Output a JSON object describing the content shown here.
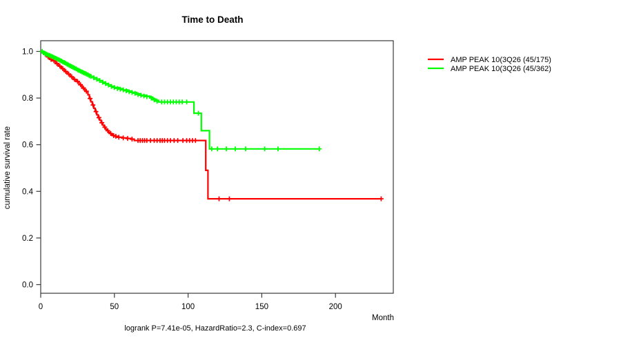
{
  "chart_data": {
    "type": "line",
    "subtype": "kaplan-meier-step",
    "title": "Time to Death",
    "xlabel": "Month",
    "ylabel": "cumulative survival rate",
    "annotation": "logrank P=7.41e-05, HazardRatio=2.3, C-index=0.697",
    "xlim": [
      0,
      239
    ],
    "ylim": [
      0,
      1.04
    ],
    "xticks": [
      0,
      50,
      100,
      150,
      200
    ],
    "yticks": [
      "0.0",
      "0.2",
      "0.4",
      "0.6",
      "0.8",
      "1.0"
    ],
    "grid": false,
    "legend_position": "right-outside",
    "series": [
      {
        "name": "AMP PEAK 10(3Q26 (45/175)",
        "color": "#ff0000",
        "steps": [
          [
            0,
            1.0
          ],
          [
            2,
            0.989
          ],
          [
            4,
            0.977
          ],
          [
            6,
            0.966
          ],
          [
            8,
            0.96
          ],
          [
            10,
            0.948
          ],
          [
            12,
            0.937
          ],
          [
            14,
            0.926
          ],
          [
            16,
            0.914
          ],
          [
            18,
            0.903
          ],
          [
            20,
            0.891
          ],
          [
            22,
            0.88
          ],
          [
            24,
            0.871
          ],
          [
            26,
            0.857
          ],
          [
            28,
            0.843
          ],
          [
            30,
            0.829
          ],
          [
            32,
            0.814
          ],
          [
            33,
            0.798
          ],
          [
            34,
            0.784
          ],
          [
            35,
            0.77
          ],
          [
            36,
            0.756
          ],
          [
            37,
            0.742
          ],
          [
            38,
            0.728
          ],
          [
            39,
            0.716
          ],
          [
            40,
            0.705
          ],
          [
            41,
            0.694
          ],
          [
            42,
            0.684
          ],
          [
            43,
            0.675
          ],
          [
            44,
            0.667
          ],
          [
            45,
            0.66
          ],
          [
            46,
            0.653
          ],
          [
            47,
            0.648
          ],
          [
            48,
            0.643
          ],
          [
            49,
            0.639
          ],
          [
            50,
            0.636
          ],
          [
            52,
            0.632
          ],
          [
            55,
            0.629
          ],
          [
            58,
            0.627
          ],
          [
            61,
            0.624
          ],
          [
            63.5,
            0.618
          ],
          [
            112,
            0.49
          ],
          [
            113.5,
            0.368
          ],
          [
            231,
            0.368
          ]
        ],
        "censors": [
          [
            3,
            0.989
          ],
          [
            5,
            0.977
          ],
          [
            7,
            0.966
          ],
          [
            9,
            0.96
          ],
          [
            11,
            0.948
          ],
          [
            13,
            0.937
          ],
          [
            15,
            0.926
          ],
          [
            17,
            0.914
          ],
          [
            19,
            0.903
          ],
          [
            21,
            0.891
          ],
          [
            23,
            0.88
          ],
          [
            25,
            0.871
          ],
          [
            27,
            0.857
          ],
          [
            29,
            0.843
          ],
          [
            31,
            0.829
          ],
          [
            33.5,
            0.798
          ],
          [
            35.5,
            0.77
          ],
          [
            37.5,
            0.742
          ],
          [
            39.5,
            0.716
          ],
          [
            41.5,
            0.694
          ],
          [
            43.5,
            0.675
          ],
          [
            45.5,
            0.66
          ],
          [
            47.5,
            0.648
          ],
          [
            49.5,
            0.639
          ],
          [
            51,
            0.636
          ],
          [
            53,
            0.632
          ],
          [
            56,
            0.629
          ],
          [
            59,
            0.627
          ],
          [
            62,
            0.624
          ],
          [
            66,
            0.618
          ],
          [
            67.5,
            0.618
          ],
          [
            69,
            0.618
          ],
          [
            70.5,
            0.618
          ],
          [
            72,
            0.618
          ],
          [
            74.5,
            0.618
          ],
          [
            77,
            0.618
          ],
          [
            79,
            0.618
          ],
          [
            81,
            0.618
          ],
          [
            82.5,
            0.618
          ],
          [
            84,
            0.618
          ],
          [
            86,
            0.618
          ],
          [
            88,
            0.618
          ],
          [
            90.5,
            0.618
          ],
          [
            93,
            0.618
          ],
          [
            96.5,
            0.618
          ],
          [
            99,
            0.618
          ],
          [
            101,
            0.618
          ],
          [
            103,
            0.618
          ],
          [
            105,
            0.618
          ],
          [
            121,
            0.368
          ],
          [
            128,
            0.368
          ],
          [
            231,
            0.368
          ]
        ]
      },
      {
        "name": "AMP PEAK 10(3Q26 (45/362)",
        "color": "#00ff00",
        "steps": [
          [
            0,
            1.0
          ],
          [
            2,
            0.994
          ],
          [
            4,
            0.988
          ],
          [
            6,
            0.983
          ],
          [
            8,
            0.977
          ],
          [
            10,
            0.971
          ],
          [
            12,
            0.965
          ],
          [
            14,
            0.959
          ],
          [
            16,
            0.952
          ],
          [
            18,
            0.945
          ],
          [
            20,
            0.938
          ],
          [
            22,
            0.931
          ],
          [
            24,
            0.925
          ],
          [
            26,
            0.918
          ],
          [
            28,
            0.912
          ],
          [
            30,
            0.906
          ],
          [
            32,
            0.9
          ],
          [
            34,
            0.893
          ],
          [
            36,
            0.887
          ],
          [
            38,
            0.881
          ],
          [
            40,
            0.875
          ],
          [
            42,
            0.868
          ],
          [
            44,
            0.862
          ],
          [
            46,
            0.856
          ],
          [
            48,
            0.85
          ],
          [
            50,
            0.845
          ],
          [
            53,
            0.84
          ],
          [
            56,
            0.835
          ],
          [
            59,
            0.83
          ],
          [
            62,
            0.824
          ],
          [
            65,
            0.818
          ],
          [
            68,
            0.812
          ],
          [
            71,
            0.808
          ],
          [
            74,
            0.804
          ],
          [
            76,
            0.796
          ],
          [
            78,
            0.79
          ],
          [
            80,
            0.783
          ],
          [
            104,
            0.735
          ],
          [
            109,
            0.66
          ],
          [
            114.5,
            0.582
          ],
          [
            189,
            0.582
          ]
        ],
        "censors": [
          [
            1,
            1.0
          ],
          [
            2,
            0.994
          ],
          [
            3,
            0.991
          ],
          [
            4,
            0.988
          ],
          [
            5,
            0.985
          ],
          [
            6,
            0.983
          ],
          [
            7,
            0.98
          ],
          [
            8,
            0.977
          ],
          [
            9,
            0.974
          ],
          [
            10,
            0.971
          ],
          [
            11,
            0.968
          ],
          [
            12,
            0.965
          ],
          [
            13,
            0.962
          ],
          [
            14,
            0.959
          ],
          [
            15,
            0.955
          ],
          [
            16,
            0.952
          ],
          [
            17,
            0.949
          ],
          [
            18,
            0.945
          ],
          [
            19,
            0.942
          ],
          [
            20,
            0.938
          ],
          [
            21,
            0.935
          ],
          [
            22,
            0.931
          ],
          [
            23,
            0.928
          ],
          [
            24,
            0.925
          ],
          [
            25,
            0.921
          ],
          [
            26,
            0.918
          ],
          [
            27,
            0.915
          ],
          [
            28,
            0.912
          ],
          [
            29,
            0.909
          ],
          [
            30,
            0.906
          ],
          [
            31,
            0.903
          ],
          [
            32,
            0.9
          ],
          [
            33,
            0.896
          ],
          [
            34,
            0.893
          ],
          [
            36,
            0.887
          ],
          [
            38,
            0.881
          ],
          [
            40,
            0.875
          ],
          [
            42,
            0.868
          ],
          [
            44,
            0.862
          ],
          [
            46,
            0.856
          ],
          [
            48,
            0.85
          ],
          [
            50,
            0.845
          ],
          [
            52,
            0.841
          ],
          [
            54,
            0.838
          ],
          [
            56,
            0.835
          ],
          [
            58,
            0.831
          ],
          [
            60,
            0.827
          ],
          [
            62,
            0.824
          ],
          [
            64,
            0.82
          ],
          [
            66,
            0.815
          ],
          [
            68,
            0.812
          ],
          [
            70,
            0.809
          ],
          [
            72,
            0.806
          ],
          [
            75,
            0.8
          ],
          [
            77,
            0.792
          ],
          [
            79,
            0.786
          ],
          [
            82,
            0.783
          ],
          [
            84,
            0.783
          ],
          [
            86,
            0.783
          ],
          [
            88,
            0.783
          ],
          [
            90,
            0.783
          ],
          [
            92,
            0.783
          ],
          [
            94,
            0.783
          ],
          [
            96,
            0.783
          ],
          [
            99,
            0.783
          ],
          [
            107,
            0.735
          ],
          [
            116,
            0.582
          ],
          [
            120,
            0.582
          ],
          [
            126,
            0.582
          ],
          [
            132,
            0.582
          ],
          [
            139,
            0.582
          ],
          [
            152,
            0.582
          ],
          [
            161,
            0.582
          ],
          [
            189,
            0.582
          ]
        ]
      }
    ]
  }
}
